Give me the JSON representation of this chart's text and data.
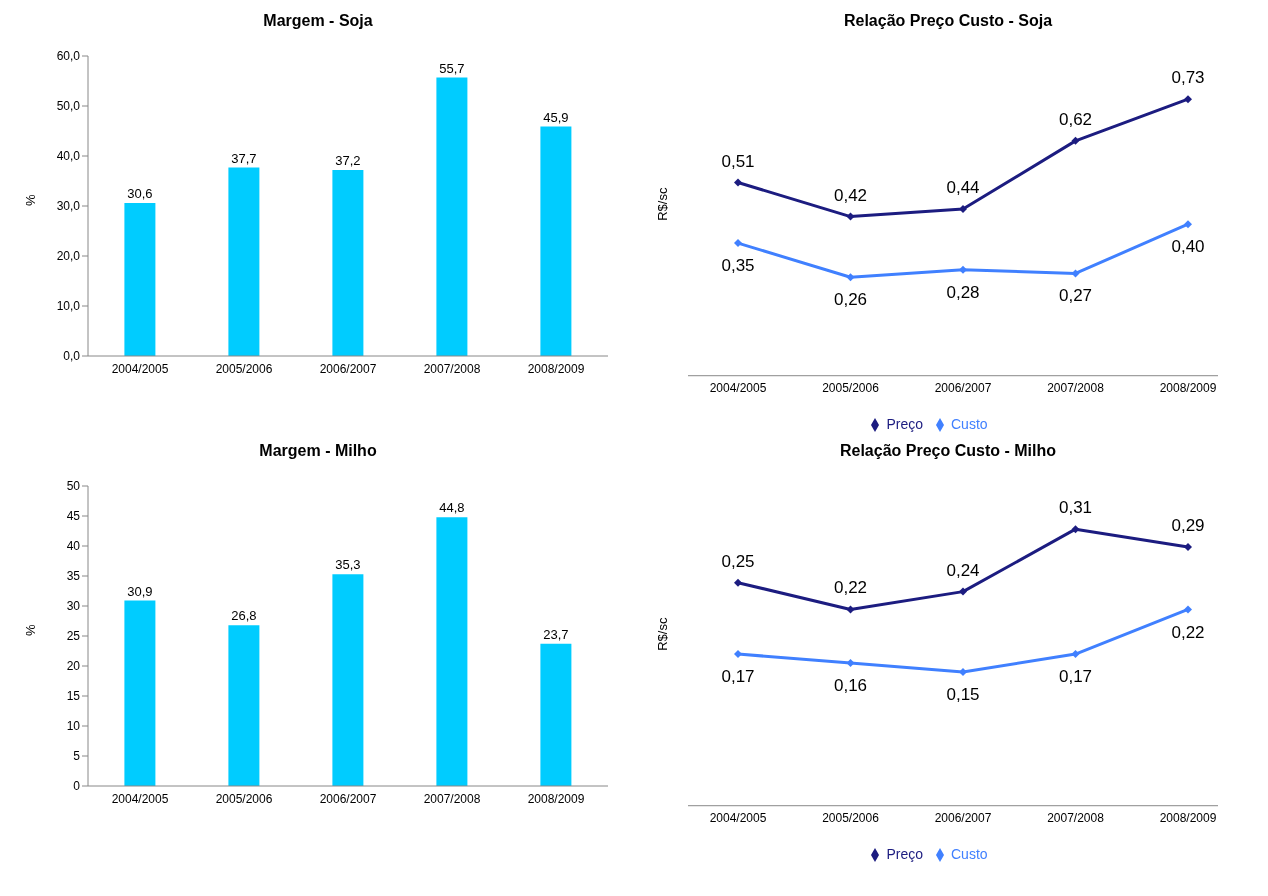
{
  "chart_data": [
    {
      "type": "bar",
      "title": "Margem - Soja",
      "ylabel": "%",
      "categories": [
        "2004/2005",
        "2005/2006",
        "2006/2007",
        "2007/2008",
        "2008/2009"
      ],
      "values": [
        30.6,
        37.7,
        37.2,
        55.7,
        45.9
      ],
      "color": "#00ccff",
      "value_labels": [
        "30,6",
        "37,7",
        "37,2",
        "55,7",
        "45,9"
      ],
      "ylim": [
        0,
        60
      ],
      "yticks": [
        {
          "value": 0,
          "label": "0,0"
        },
        {
          "value": 10,
          "label": "10,0"
        },
        {
          "value": 20,
          "label": "20,0"
        },
        {
          "value": 30,
          "label": "30,0"
        },
        {
          "value": 40,
          "label": "40,0"
        },
        {
          "value": 50,
          "label": "50,0"
        },
        {
          "value": 60,
          "label": "60,0"
        }
      ],
      "grid": false,
      "legend": false
    },
    {
      "type": "line",
      "title": "Relação Preço Custo - Soja",
      "ylabel": "R$/sc",
      "categories": [
        "2004/2005",
        "2005/2006",
        "2006/2007",
        "2007/2008",
        "2008/2009"
      ],
      "series": [
        {
          "name": "Preço",
          "color": "#1c1c80",
          "values": [
            0.51,
            0.42,
            0.44,
            0.62,
            0.73
          ],
          "value_labels": [
            "0,51",
            "0,42",
            "0,44",
            "0,62",
            "0,73"
          ]
        },
        {
          "name": "Custo",
          "color": "#4080ff",
          "values": [
            0.35,
            0.26,
            0.28,
            0.27,
            0.4
          ],
          "value_labels": [
            "0,35",
            "0,26",
            "0,28",
            "0,27",
            "0,40"
          ]
        }
      ],
      "tick_labels": "x",
      "marker": "diamond",
      "grid": false,
      "legend": "bottom"
    },
    {
      "type": "bar",
      "title": "Margem - Milho",
      "ylabel": "%",
      "categories": [
        "2004/2005",
        "2005/2006",
        "2006/2007",
        "2007/2008",
        "2008/2009"
      ],
      "values": [
        30.9,
        26.8,
        35.3,
        44.8,
        23.7
      ],
      "color": "#00ccff",
      "value_labels": [
        "30,9",
        "26,8",
        "35,3",
        "44,8",
        "23,7"
      ],
      "ylim": [
        0,
        50
      ],
      "yticks": [
        0,
        5,
        10,
        15,
        20,
        25,
        30,
        35,
        40,
        45,
        50
      ],
      "grid": false,
      "legend": false
    },
    {
      "type": "line",
      "title": "Relação Preço Custo - Milho",
      "ylabel": "R$/sc",
      "categories": [
        "2004/2005",
        "2005/2006",
        "2006/2007",
        "2007/2008",
        "2008/2009"
      ],
      "series": [
        {
          "name": "Preço",
          "color": "#1c1c80",
          "values": [
            0.25,
            0.22,
            0.24,
            0.31,
            0.29
          ],
          "value_labels": [
            "0,25",
            "0,22",
            "0,24",
            "0,31",
            "0,29"
          ]
        },
        {
          "name": "Custo",
          "color": "#4080ff",
          "values": [
            0.17,
            0.16,
            0.15,
            0.17,
            0.22
          ],
          "value_labels": [
            "0,17",
            "0,16",
            "0,15",
            "0,17",
            "0,22"
          ]
        }
      ],
      "tick_labels": "x",
      "marker": "diamond",
      "grid": false,
      "legend": "bottom"
    }
  ]
}
